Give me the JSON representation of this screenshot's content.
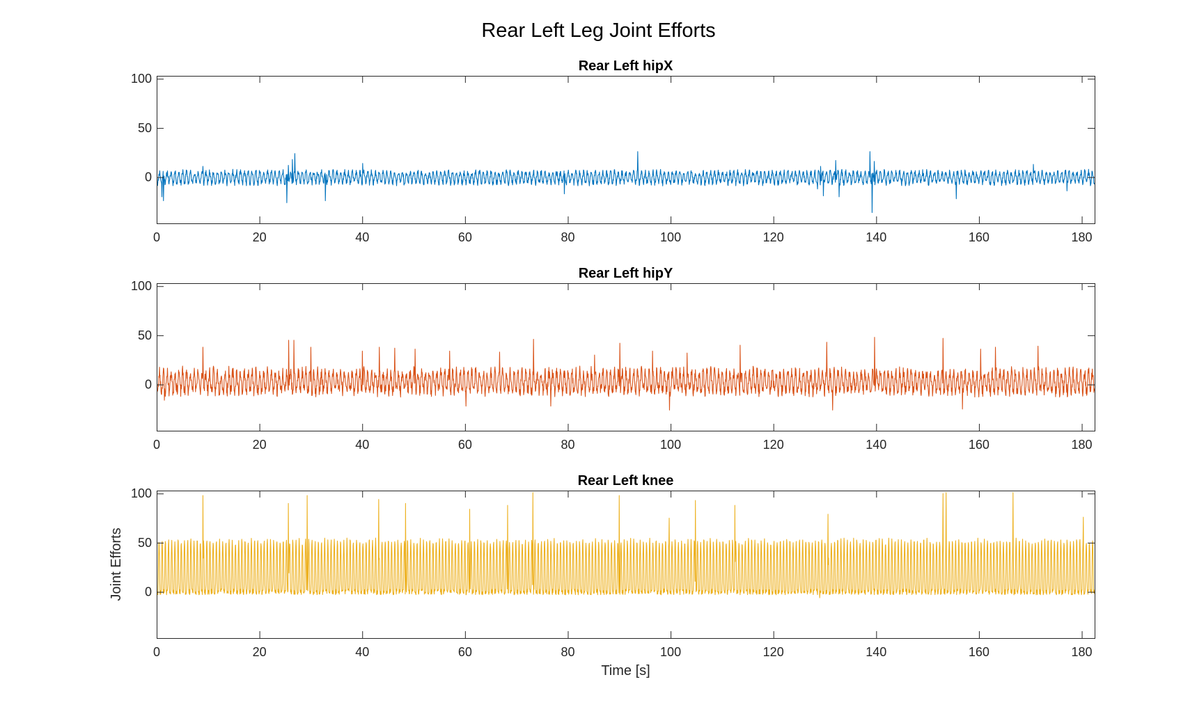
{
  "figure": {
    "title": "Rear Left Leg Joint Efforts"
  },
  "chart_data": [
    {
      "type": "line",
      "title": "Rear Left hipX",
      "xlabel": "",
      "ylabel": "",
      "xlim": [
        0,
        182.5
      ],
      "ylim": [
        -47,
        103
      ],
      "xticks": [
        0,
        20,
        40,
        60,
        80,
        100,
        120,
        140,
        160,
        180
      ],
      "yticks": [
        0,
        50,
        100
      ],
      "grid": false,
      "series": [
        {
          "color": "#0072BD",
          "signal": {
            "duration": 182.5,
            "period": 0.75,
            "base": 0,
            "amp_hi": 5,
            "amp_lo": 6,
            "noise": 3,
            "seed": 11,
            "spikes": [
              [
                1.0,
                -20
              ],
              [
                1.3,
                -24
              ],
              [
                9,
                11
              ],
              [
                25.3,
                -26
              ],
              [
                25.6,
                12
              ],
              [
                26.4,
                18
              ],
              [
                26.9,
                24
              ],
              [
                32.8,
                -24
              ],
              [
                40.1,
                14
              ],
              [
                79.3,
                -17
              ],
              [
                93.6,
                26
              ],
              [
                128.6,
                -12
              ],
              [
                129.2,
                11
              ],
              [
                129.7,
                -19
              ],
              [
                132.1,
                17
              ],
              [
                132.8,
                -20
              ],
              [
                138.8,
                26
              ],
              [
                139.2,
                -36
              ],
              [
                139.6,
                16
              ],
              [
                155.6,
                -22
              ],
              [
                170.6,
                13
              ],
              [
                177.1,
                -14
              ]
            ]
          }
        }
      ]
    },
    {
      "type": "line",
      "title": "Rear Left hipY",
      "xlabel": "",
      "ylabel": "",
      "xlim": [
        0,
        182.5
      ],
      "ylim": [
        -47,
        103
      ],
      "xticks": [
        0,
        20,
        40,
        60,
        80,
        100,
        120,
        140,
        160,
        180
      ],
      "yticks": [
        0,
        50,
        100
      ],
      "grid": false,
      "series": [
        {
          "color": "#D95319",
          "signal": {
            "duration": 182.5,
            "period": 0.75,
            "base": 2,
            "amp_hi": 11,
            "amp_lo": 9,
            "noise": 6,
            "seed": 23,
            "spikes": [
              [
                1.5,
                -16
              ],
              [
                9,
                38
              ],
              [
                25.7,
                45
              ],
              [
                26.7,
                45
              ],
              [
                30,
                38
              ],
              [
                40,
                34
              ],
              [
                43.3,
                38
              ],
              [
                46.3,
                37
              ],
              [
                50.3,
                36
              ],
              [
                57,
                34
              ],
              [
                60.2,
                -22
              ],
              [
                66.7,
                33
              ],
              [
                73.3,
                46
              ],
              [
                76.7,
                -22
              ],
              [
                85.2,
                30
              ],
              [
                90.1,
                42
              ],
              [
                96.5,
                34
              ],
              [
                99.8,
                -26
              ],
              [
                103.2,
                32
              ],
              [
                113.5,
                40
              ],
              [
                130.4,
                43
              ],
              [
                131.5,
                -26
              ],
              [
                139.7,
                48
              ],
              [
                153,
                47
              ],
              [
                156.8,
                -25
              ],
              [
                160.3,
                36
              ],
              [
                163.2,
                38
              ],
              [
                171.5,
                39
              ]
            ]
          }
        }
      ]
    },
    {
      "type": "line",
      "title": "Rear Left knee",
      "xlabel": "Time [s]",
      "ylabel": "Joint Efforts",
      "xlim": [
        0,
        182.5
      ],
      "ylim": [
        -47,
        103
      ],
      "xticks": [
        0,
        20,
        40,
        60,
        80,
        100,
        120,
        140,
        160,
        180
      ],
      "yticks": [
        0,
        50,
        100
      ],
      "grid": false,
      "series": [
        {
          "color": "#EDB120",
          "signal": {
            "duration": 182.5,
            "period": 0.62,
            "base": 0,
            "amp_hi": 52,
            "amp_lo": 0,
            "noise": 3,
            "seed": 37,
            "low_fraction": 0.45,
            "spikes": [
              [
                9,
                98
              ],
              [
                25.6,
                90
              ],
              [
                29.3,
                98
              ],
              [
                43.2,
                94
              ],
              [
                48.4,
                90
              ],
              [
                60.9,
                84
              ],
              [
                68.3,
                88
              ],
              [
                73.2,
                101
              ],
              [
                90,
                98
              ],
              [
                99.7,
                75
              ],
              [
                104.8,
                93
              ],
              [
                112.5,
                88
              ],
              [
                129,
                -6
              ],
              [
                130.6,
                79
              ],
              [
                153,
                100
              ],
              [
                153.6,
                101
              ],
              [
                166.6,
                101
              ],
              [
                180.3,
                76
              ]
            ]
          }
        }
      ]
    }
  ]
}
